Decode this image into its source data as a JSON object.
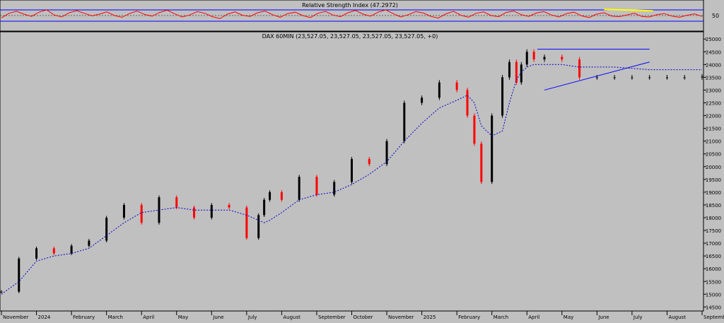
{
  "chart_data": [
    {
      "type": "line",
      "title": "Relative Strength Index (47.2972)",
      "ylim": [
        0,
        100
      ],
      "upper_band": 70,
      "lower_band": 30,
      "mid_line": 50,
      "y_tick_labels": [
        "50"
      ],
      "series": [
        {
          "color": "#ff0000",
          "values": [
            42,
            58,
            65,
            55,
            47,
            62,
            70,
            52,
            45,
            60,
            67,
            58,
            49,
            55,
            63,
            50,
            44,
            57,
            66,
            54,
            48,
            61,
            69,
            56,
            45,
            52,
            64,
            58,
            46,
            39,
            55,
            63,
            51,
            47,
            60,
            66,
            53,
            44,
            57,
            62,
            50,
            43,
            58,
            65,
            52,
            46,
            60,
            68,
            55,
            48,
            62,
            70,
            57,
            45,
            53,
            64,
            59,
            47,
            41,
            56,
            65,
            51,
            44,
            58,
            63,
            50,
            46,
            61,
            66,
            53,
            47,
            59,
            64,
            52,
            45,
            57,
            62,
            49,
            43,
            55,
            60,
            48,
            46,
            52,
            58,
            47,
            45,
            53,
            57,
            48,
            44,
            51,
            56,
            47
          ]
        }
      ],
      "annotations": [
        {
          "type": "trendline",
          "color": "#ffff00",
          "x": [
            0.86,
            0.93
          ],
          "y": [
            72,
            67
          ]
        }
      ]
    },
    {
      "type": "line",
      "title": "DAX 60MIN (23,527.05, 23,527.05, 23,527.05, 23,527.05, +0)",
      "ylim": [
        14400,
        25200
      ],
      "y_tick_labels": [
        "25000",
        "24500",
        "24000",
        "23500",
        "23000",
        "22500",
        "22000",
        "21500",
        "21000",
        "20500",
        "20000",
        "19500",
        "19000",
        "18500",
        "18000",
        "17500",
        "17000",
        "16500",
        "16000",
        "15500",
        "15000",
        "14500"
      ],
      "x_tick_labels": [
        "November",
        "2024",
        "February",
        "March",
        "April",
        "May",
        "June",
        "July",
        "August",
        "September",
        "October",
        "November",
        "2025",
        "February",
        "March",
        "April",
        "May",
        "June",
        "July",
        "August",
        "September"
      ],
      "series": [
        {
          "type": "candlestick",
          "up_color": "#000000",
          "down_color": "#ff0000",
          "x": [
            0.0,
            0.025,
            0.05,
            0.075,
            0.1,
            0.125,
            0.15,
            0.175,
            0.2,
            0.225,
            0.25,
            0.275,
            0.3,
            0.325,
            0.35,
            0.367,
            0.375,
            0.383,
            0.4,
            0.425,
            0.45,
            0.475,
            0.5,
            0.525,
            0.55,
            0.575,
            0.6,
            0.625,
            0.65,
            0.665,
            0.675,
            0.685,
            0.7,
            0.715,
            0.725,
            0.735,
            0.742,
            0.75,
            0.76,
            0.775,
            0.8,
            0.825,
            0.85,
            0.875,
            0.9,
            0.925,
            0.95,
            0.975,
            1.0
          ],
          "close": [
            15100,
            16400,
            16800,
            16600,
            16900,
            17100,
            18000,
            18500,
            17800,
            18800,
            18400,
            18000,
            18500,
            18400,
            17200,
            18100,
            18700,
            19000,
            18700,
            19600,
            18900,
            19400,
            20300,
            20100,
            21000,
            22500,
            22700,
            23300,
            23000,
            22000,
            20900,
            19400,
            22000,
            23500,
            24100,
            23300,
            24000,
            24500,
            24200,
            24300,
            24200,
            23500,
            23500,
            23500,
            23500,
            23500,
            23500,
            23500,
            23527
          ]
        },
        {
          "type": "line",
          "name": "",
          "color": "#0000cc",
          "dash": "2,2",
          "values_at_x": [
            0.0,
            0.025,
            0.05,
            0.075,
            0.1,
            0.125,
            0.15,
            0.175,
            0.2,
            0.225,
            0.25,
            0.275,
            0.3,
            0.325,
            0.35,
            0.367,
            0.375,
            0.383,
            0.4,
            0.425,
            0.45,
            0.475,
            0.5,
            0.525,
            0.55,
            0.575,
            0.6,
            0.625,
            0.65,
            0.665,
            0.675,
            0.685,
            0.7,
            0.715,
            0.725,
            0.735,
            0.742,
            0.75,
            0.76,
            0.775,
            0.8,
            0.825,
            0.85,
            0.875,
            0.9,
            0.925,
            0.95,
            0.975,
            1.0
          ],
          "values": [
            15000,
            15500,
            16300,
            16500,
            16600,
            16800,
            17300,
            17800,
            18200,
            18300,
            18400,
            18300,
            18300,
            18300,
            18100,
            17900,
            17800,
            17900,
            18200,
            18700,
            18900,
            19000,
            19300,
            19700,
            20200,
            21000,
            21700,
            22300,
            22600,
            22800,
            22500,
            21600,
            21200,
            21400,
            22500,
            23400,
            23700,
            23900,
            24000,
            24000,
            24000,
            23900,
            23900,
            23900,
            23850,
            23800,
            23800,
            23800,
            23800
          ]
        }
      ],
      "annotations": [
        {
          "type": "trendline",
          "color": "#0000ff",
          "x": [
            0.765,
            0.925
          ],
          "y": [
            24600,
            24600
          ]
        },
        {
          "type": "trendline",
          "color": "#0000ff",
          "x": [
            0.775,
            0.925
          ],
          "y": [
            23000,
            24100
          ]
        }
      ]
    }
  ]
}
